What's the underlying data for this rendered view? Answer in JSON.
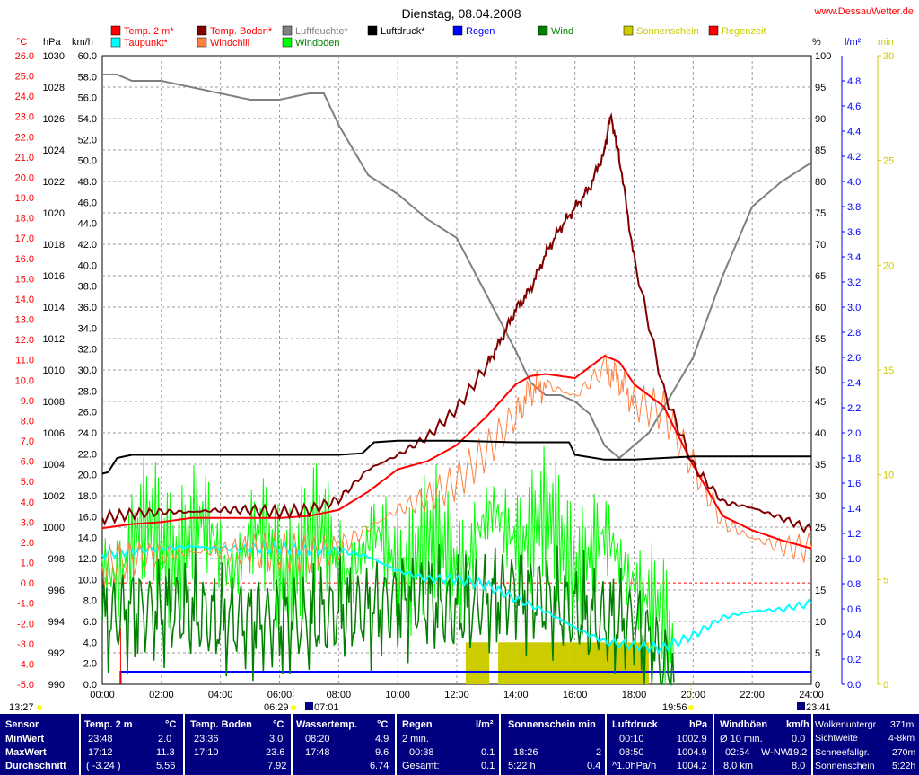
{
  "title": "Dienstag, 08.04.2008",
  "site": "www.DessauWetter.de",
  "legend": [
    {
      "label": "Temp. 2 m*",
      "color": "#ff0000",
      "text_color": "#ff0000"
    },
    {
      "label": "Taupunkt*",
      "color": "#00ffff",
      "text_color": "#ff0000"
    },
    {
      "label": "Temp. Boden*",
      "color": "#800000",
      "text_color": "#ff0000"
    },
    {
      "label": "Windchill",
      "color": "#ff8040",
      "text_color": "#ff0000"
    },
    {
      "label": "Luftfeuchte*",
      "color": "#808080",
      "text_color": "#808080"
    },
    {
      "label": "Windböen",
      "color": "#00ff00",
      "text_color": "#008000"
    },
    {
      "label": "Luftdruck*",
      "color": "#000000",
      "text_color": "#000000"
    },
    {
      "label": "Regen",
      "color": "#0000ff",
      "text_color": "#0000ff"
    },
    {
      "label": "Wind",
      "color": "#008000",
      "text_color": "#008000"
    },
    {
      "label": "Sonnenschein",
      "color": "#cccc00",
      "text_color": "#cccc00"
    },
    {
      "label": "Regenzeit",
      "color": "#ff0000",
      "text_color": "#cccc00"
    }
  ],
  "axis_units": {
    "celsius": "°C",
    "hpa": "hPa",
    "kmh": "km/h",
    "percent": "%",
    "rain": "l/m²",
    "minutes": "min"
  },
  "axes": {
    "celsius": [
      "26.0",
      "25.0",
      "24.0",
      "23.0",
      "22.0",
      "21.0",
      "20.0",
      "19.0",
      "18.0",
      "17.0",
      "16.0",
      "15.0",
      "14.0",
      "13.0",
      "12.0",
      "11.0",
      "10.0",
      "9.0",
      "8.0",
      "7.0",
      "6.0",
      "5.0",
      "4.0",
      "3.0",
      "2.0",
      "1.0",
      "0.0",
      "-1.0",
      "-2.0",
      "-3.0",
      "-4.0",
      "-5.0"
    ],
    "hpa": [
      "1030",
      "1028",
      "1026",
      "1024",
      "1022",
      "1020",
      "1018",
      "1016",
      "1014",
      "1012",
      "1010",
      "1008",
      "1006",
      "1004",
      "1002",
      "1000",
      "998",
      "996",
      "994",
      "992",
      "990"
    ],
    "kmh": [
      "60.0",
      "58.0",
      "56.0",
      "54.0",
      "52.0",
      "50.0",
      "48.0",
      "46.0",
      "44.0",
      "42.0",
      "40.0",
      "38.0",
      "36.0",
      "34.0",
      "32.0",
      "30.0",
      "28.0",
      "26.0",
      "24.0",
      "22.0",
      "20.0",
      "18.0",
      "16.0",
      "14.0",
      "12.0",
      "10.0",
      "8.0",
      "6.0",
      "4.0",
      "2.0",
      "0.0"
    ],
    "percent": [
      "100",
      "95",
      "90",
      "85",
      "80",
      "75",
      "70",
      "65",
      "60",
      "55",
      "50",
      "45",
      "40",
      "35",
      "30",
      "25",
      "20",
      "15",
      "10",
      "5",
      "0"
    ],
    "rain": [
      "4.8",
      "4.6",
      "4.4",
      "4.2",
      "4.0",
      "3.8",
      "3.6",
      "3.4",
      "3.2",
      "3.0",
      "2.8",
      "2.6",
      "2.4",
      "2.2",
      "2.0",
      "1.8",
      "1.6",
      "1.4",
      "1.2",
      "1.0",
      "0.8",
      "0.6",
      "0.4",
      "0.2",
      "0.0"
    ],
    "minutes": [
      "30",
      "25",
      "20",
      "15",
      "10",
      "5",
      "0"
    ],
    "time": [
      "00:00",
      "02:00",
      "04:00",
      "06:00",
      "08:00",
      "10:00",
      "12:00",
      "14:00",
      "16:00",
      "18:00",
      "20:00",
      "22:00",
      "24:00"
    ]
  },
  "sun_marks": {
    "moonrise": "13:27",
    "sunrise": "06:29",
    "sunrise2": "07:01",
    "sunset": "19:56",
    "moonset": "23:41"
  },
  "colors": {
    "panel_bg": "#000080",
    "panel_text": "#ffffff",
    "red_axis": "#ff0000",
    "grid": "#808080"
  },
  "chart_data": {
    "type": "line",
    "title": "Dienstag, 08.04.2008",
    "x_unit": "hour of day",
    "xlim": [
      0,
      24
    ],
    "series": [
      {
        "name": "Temp. 2 m*",
        "axis": "°C",
        "ylim": [
          -5,
          26
        ],
        "x": [
          0,
          1,
          2,
          3,
          4,
          5,
          6,
          7,
          8,
          9,
          10,
          11,
          12,
          13,
          14,
          14.5,
          15,
          16,
          17,
          17.5,
          18,
          19,
          20,
          21,
          22,
          23,
          24
        ],
        "y": [
          2.7,
          2.9,
          3.0,
          3.2,
          3.2,
          3.2,
          3.2,
          3.3,
          3.6,
          4.5,
          5.6,
          6.0,
          6.8,
          8.2,
          9.8,
          10.2,
          10.3,
          10.1,
          11.2,
          10.9,
          9.8,
          8.7,
          5.8,
          3.3,
          2.6,
          2.1,
          1.7
        ]
      },
      {
        "name": "Temp. Boden*",
        "axis": "°C",
        "ylim": [
          -5,
          26
        ],
        "x": [
          0,
          1,
          2,
          3,
          4,
          5,
          6,
          7,
          8,
          9,
          10,
          11,
          12,
          13,
          13.5,
          14,
          14.5,
          15,
          15.5,
          16,
          16.5,
          17,
          17.2,
          17.5,
          18,
          19,
          20,
          21,
          22,
          23,
          24
        ],
        "y": [
          3.2,
          3.4,
          3.5,
          3.5,
          3.6,
          3.6,
          3.5,
          3.6,
          4.1,
          5.6,
          6.3,
          7.2,
          8.6,
          10.7,
          12.0,
          13.5,
          14.5,
          16.2,
          17.5,
          18.5,
          19.5,
          21.3,
          23.1,
          21.0,
          16.0,
          9.5,
          5.8,
          4.0,
          3.7,
          3.2,
          2.6
        ]
      },
      {
        "name": "Windchill",
        "axis": "°C",
        "ylim": [
          -5,
          26
        ],
        "x": [
          0,
          1,
          2,
          3,
          4,
          5,
          6,
          7,
          8,
          9,
          10,
          11,
          12,
          13,
          14,
          14.5,
          15,
          16,
          17,
          17.5,
          18,
          19,
          20,
          21,
          22,
          23,
          24
        ],
        "y": [
          0.8,
          1.2,
          1.4,
          1.5,
          1.6,
          1.6,
          1.5,
          1.4,
          1.7,
          2.7,
          3.6,
          4.2,
          5.0,
          6.5,
          8.3,
          9.5,
          9.8,
          9.2,
          10.6,
          10.0,
          8.9,
          8.5,
          5.8,
          3.0,
          2.2,
          1.8,
          1.7
        ]
      },
      {
        "name": "Taupunkt*",
        "axis": "°C",
        "ylim": [
          -5,
          26
        ],
        "x": [
          0,
          1,
          2,
          3,
          4,
          5,
          6,
          7,
          8,
          9,
          10,
          11,
          12,
          13,
          14,
          15,
          16,
          17,
          18,
          19,
          20,
          21,
          22,
          23,
          24
        ],
        "y": [
          1.4,
          1.6,
          1.7,
          1.8,
          1.7,
          1.7,
          1.7,
          1.6,
          1.6,
          1.3,
          0.6,
          0.2,
          0.2,
          -0.1,
          -0.8,
          -1.4,
          -2.2,
          -2.9,
          -3.1,
          -3.2,
          -2.6,
          -1.7,
          -1.4,
          -1.3,
          -1.0
        ]
      },
      {
        "name": "Luftfeuchte*",
        "axis": "%",
        "ylim": [
          0,
          100
        ],
        "x": [
          0,
          0.5,
          1,
          2,
          3,
          4,
          5,
          6,
          7,
          7.5,
          8,
          9,
          10,
          11,
          12,
          13,
          14,
          14.5,
          15,
          15.5,
          16,
          16.5,
          17,
          17.5,
          18,
          18.5,
          19,
          20,
          21,
          22,
          23,
          24
        ],
        "y": [
          97,
          97,
          96,
          96,
          95,
          94,
          93,
          93,
          94,
          94,
          89,
          81,
          78,
          74,
          71,
          62,
          53,
          48,
          46,
          46,
          45,
          43,
          38,
          36,
          38,
          40,
          44,
          52,
          65,
          76,
          80,
          83
        ]
      },
      {
        "name": "Luftdruck*",
        "axis": "hPa",
        "ylim": [
          990,
          1030
        ],
        "x": [
          0,
          0.2,
          0.5,
          1,
          2,
          4,
          6,
          8,
          8.8,
          9.2,
          10,
          12,
          14,
          15.8,
          16,
          17,
          18,
          19,
          20,
          22,
          24
        ],
        "y": [
          1003.4,
          1003.5,
          1004.4,
          1004.6,
          1004.6,
          1004.6,
          1004.6,
          1004.6,
          1004.7,
          1005.4,
          1005.5,
          1005.5,
          1005.4,
          1005.4,
          1004.6,
          1004.3,
          1004.3,
          1004.4,
          1004.5,
          1004.5,
          1004.5
        ]
      },
      {
        "name": "Windböen",
        "axis": "km/h",
        "ylim": [
          0,
          60
        ],
        "x": [
          0,
          1,
          2,
          3,
          4,
          5,
          6,
          7,
          8,
          9,
          10,
          11,
          12,
          13,
          14,
          15,
          16,
          17,
          18,
          18.5,
          19,
          19.4
        ],
        "y": [
          12,
          13,
          14,
          14,
          13,
          13,
          12,
          13,
          13,
          12,
          13,
          12,
          13,
          14,
          16,
          14,
          13,
          12,
          12,
          8,
          4,
          2
        ]
      },
      {
        "name": "Wind",
        "axis": "km/h",
        "ylim": [
          0,
          60
        ],
        "x": [
          0,
          1,
          2,
          3,
          4,
          5,
          6,
          7,
          8,
          9,
          10,
          11,
          12,
          13,
          14,
          15,
          16,
          17,
          18,
          18.5,
          19,
          19.4
        ],
        "y": [
          6,
          7,
          7,
          7,
          6,
          6,
          6,
          6,
          7,
          7,
          8,
          8,
          7,
          8,
          9,
          8,
          7,
          6,
          6,
          4,
          2,
          0
        ]
      },
      {
        "name": "Sonnenschein",
        "axis": "min",
        "ylim": [
          0,
          30
        ],
        "segments": [
          [
            12.3,
            13.1
          ],
          [
            13.4,
            15.8
          ],
          [
            15.8,
            18.5
          ]
        ],
        "value": 2
      }
    ]
  },
  "stats": {
    "sensor": {
      "title": "Sensor",
      "rows": [
        "MinWert",
        "MaxWert",
        "Durchschnitt"
      ]
    },
    "temp2m": {
      "title": "Temp. 2 m",
      "unit": "°C",
      "r1t": "23:48",
      "r1v": "2.0",
      "r2t": "17:12",
      "r2v": "11.3",
      "r3t": "( -3.24 )",
      "r3v": "5.56"
    },
    "boden": {
      "title": "Temp. Boden",
      "unit": "°C",
      "r1t": "23:36",
      "r1v": "3.0",
      "r2t": "17:10",
      "r2v": "23.6",
      "r3t": "",
      "r3v": "7.92"
    },
    "wasser": {
      "title": "Wassertemp.",
      "unit": "°C",
      "r1t": "08:20",
      "r1v": "4.9",
      "r2t": "17:48",
      "r2v": "9.6",
      "r3t": "",
      "r3v": "6.74"
    },
    "regen": {
      "title": "Regen",
      "unit": "l/m²",
      "r1t": "2 min.",
      "r1v": "",
      "r2t": "00:38",
      "r2v": "0.1",
      "r3t": "Gesamt:",
      "r3v": "0.1"
    },
    "sonne": {
      "title": "Sonnenschein min",
      "unit": "",
      "r1t": "",
      "r1v": "",
      "r2t": "18:26",
      "r2v": "2",
      "r3t": "5:22 h",
      "r3v": "0.4"
    },
    "druck": {
      "title": "Luftdruck",
      "unit": "hPa",
      "r1t": "00:10",
      "r1v": "1002.9",
      "r2t": "08:50",
      "r2v": "1004.9",
      "r3t": "^1.0hPa/h",
      "r3v": "1004.2"
    },
    "boeen": {
      "title": "Windböen",
      "unit": "km/h",
      "r1t": "Ø 10 min.",
      "r1v": "0.0",
      "r2t": "02:54",
      "r2m": "W-NW",
      "r2v": "19.2",
      "r3t": "8.0 km",
      "r3v": "8.0"
    },
    "extra": {
      "l1": "Wolkenuntergr.",
      "v1": "371m",
      "l2": "Sichtweite",
      "v2": "4-8km",
      "l3": "Schneefallgr.",
      "v3": "270m",
      "l4": "Sonnenschein",
      "v4": "5:22h"
    }
  }
}
